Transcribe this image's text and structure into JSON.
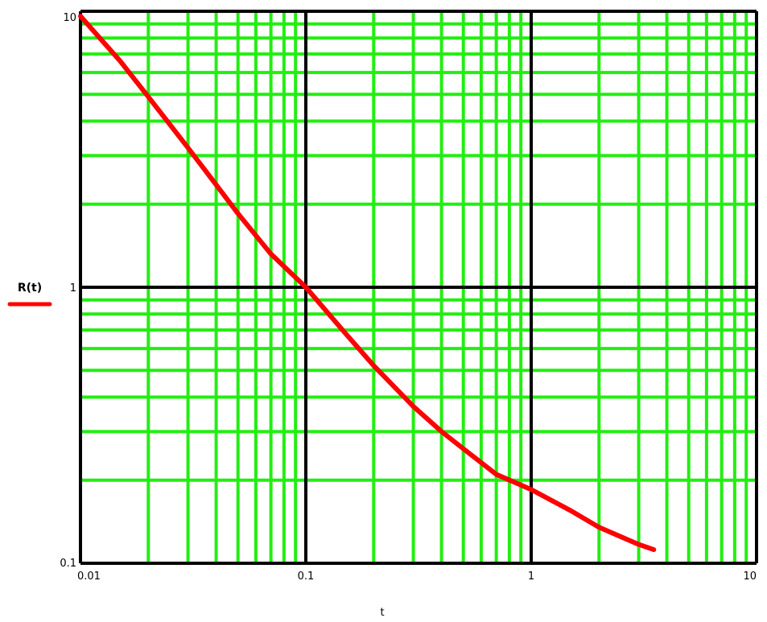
{
  "chart_data": {
    "type": "line",
    "xscale": "log",
    "yscale": "log",
    "xlim": [
      0.01,
      10
    ],
    "ylim": [
      0.1,
      10
    ],
    "grid": true,
    "x_tick_labels": [
      "0.01",
      "0.1",
      "1",
      "10"
    ],
    "y_tick_labels": [
      "0.1",
      "1",
      "10"
    ],
    "xlabel": "t",
    "ylabel": "",
    "legend_position": "left",
    "series": [
      {
        "name": "R(t)",
        "color": "#ff0000",
        "x": [
          0.01,
          0.015,
          0.02,
          0.03,
          0.04,
          0.05,
          0.07,
          0.1,
          0.15,
          0.2,
          0.3,
          0.4,
          0.5,
          0.7,
          1,
          1.5,
          2,
          3,
          3.5
        ],
        "y": [
          9.6,
          6.6,
          4.9,
          3.2,
          2.35,
          1.85,
          1.32,
          1.0,
          0.68,
          0.52,
          0.37,
          0.3,
          0.26,
          0.21,
          0.185,
          0.155,
          0.135,
          0.117,
          0.112
        ]
      }
    ]
  },
  "colors": {
    "grid_minor": "#22ee11",
    "grid_major": "#000000",
    "series": "#ff0000"
  }
}
